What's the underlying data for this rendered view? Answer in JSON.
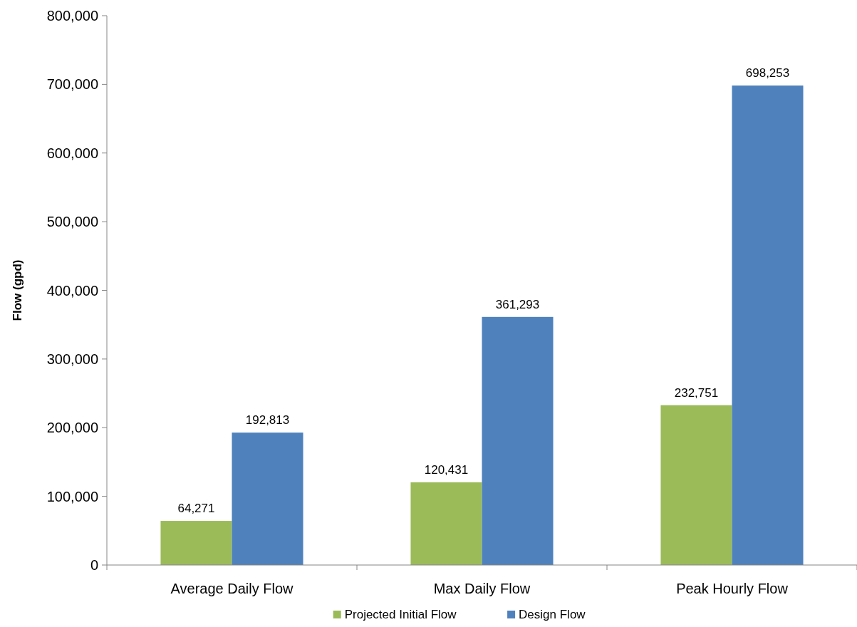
{
  "chart_data": {
    "type": "bar",
    "ylabel": "Flow (gpd)",
    "categories": [
      "Average Daily Flow",
      "Max Daily Flow",
      "Peak Hourly Flow"
    ],
    "series": [
      {
        "name": "Projected Initial Flow",
        "color": "#9bbb59",
        "values": [
          64271,
          120431,
          232751
        ]
      },
      {
        "name": "Design Flow",
        "color": "#4f81bd",
        "values": [
          192813,
          361293,
          698253
        ]
      }
    ],
    "ylim": [
      0,
      800000
    ],
    "yticks": [
      {
        "value": 0,
        "label": "0"
      },
      {
        "value": 100000,
        "label": "100,000"
      },
      {
        "value": 200000,
        "label": "200,000"
      },
      {
        "value": 300000,
        "label": "300,000"
      },
      {
        "value": 400000,
        "label": "400,000"
      },
      {
        "value": 500000,
        "label": "500,000"
      },
      {
        "value": 600000,
        "label": "600,000"
      },
      {
        "value": 700000,
        "label": "700,000"
      },
      {
        "value": 800000,
        "label": "800,000"
      }
    ],
    "value_labels": [
      [
        "64,271",
        "120,431",
        "232,751"
      ],
      [
        "192,813",
        "361,293",
        "698,253"
      ]
    ],
    "legend": "bottom",
    "grid": false
  }
}
